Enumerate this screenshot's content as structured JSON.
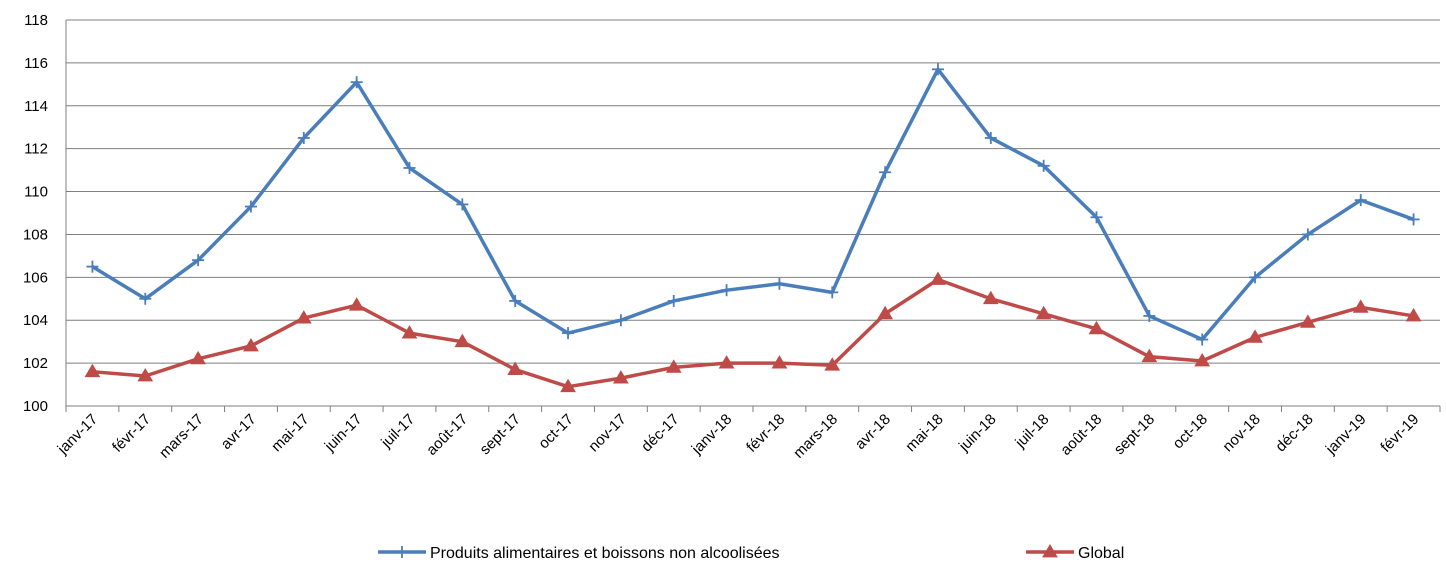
{
  "chart_data": {
    "type": "line",
    "title": "",
    "xlabel": "",
    "ylabel": "",
    "ylim": [
      100,
      118
    ],
    "yticks": [
      100,
      102,
      104,
      106,
      108,
      110,
      112,
      114,
      116,
      118
    ],
    "grid": true,
    "legend": "bottom",
    "categories": [
      "janv-17",
      "févr-17",
      "mars-17",
      "avr-17",
      "mai-17",
      "juin-17",
      "juil-17",
      "août-17",
      "sept-17",
      "oct-17",
      "nov-17",
      "déc-17",
      "janv-18",
      "févr-18",
      "mars-18",
      "avr-18",
      "mai-18",
      "juin-18",
      "juil-18",
      "août-18",
      "sept-18",
      "oct-18",
      "nov-18",
      "déc-18",
      "janv-19",
      "févr-19"
    ],
    "series": [
      {
        "name": "Produits alimentaires et boissons non alcoolisées",
        "color": "#4a7ebb",
        "marker": "plus",
        "values": [
          106.5,
          105.0,
          106.8,
          109.3,
          112.5,
          115.1,
          111.1,
          109.4,
          104.9,
          103.4,
          104.0,
          104.9,
          105.4,
          105.7,
          105.3,
          110.9,
          115.7,
          112.5,
          111.2,
          108.8,
          104.2,
          103.1,
          106.0,
          108.0,
          109.6,
          108.7
        ]
      },
      {
        "name": "Global",
        "color": "#be4b48",
        "marker": "triangle",
        "values": [
          101.6,
          101.4,
          102.2,
          102.8,
          104.1,
          104.7,
          103.4,
          103.0,
          101.7,
          100.9,
          101.3,
          101.8,
          102.0,
          102.0,
          101.9,
          104.3,
          105.9,
          105.0,
          104.3,
          103.6,
          102.3,
          102.1,
          103.2,
          103.9,
          104.6,
          104.2
        ]
      }
    ]
  }
}
